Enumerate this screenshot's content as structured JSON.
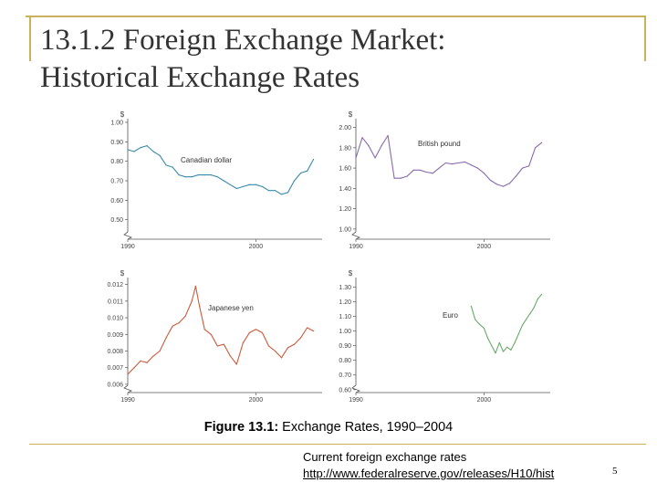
{
  "slide": {
    "title_line1": "13.1.2 Foreign Exchange Market:",
    "title_line2": "Historical Exchange Rates",
    "caption_label": "Figure 13.1:",
    "caption_text": " Exchange Rates, 1990–2004",
    "note_text": "Current foreign exchange rates",
    "note_link": "http://www.federalreserve.gov/releases/H10/hist",
    "page_number": "5",
    "frame_color": "#c9b25a"
  },
  "chart_data": [
    {
      "type": "line",
      "title": "",
      "series_label": "Canadian dollar",
      "color": "#3a8aa8",
      "ylabel": "$",
      "ylim": [
        0.4,
        1.0
      ],
      "yticks": [
        "1.00",
        "0.90",
        "0.80",
        "0.70",
        "0.60",
        "0.50"
      ],
      "ytick_values": [
        1.0,
        0.9,
        0.8,
        0.7,
        0.6,
        0.5
      ],
      "xlim": [
        1990,
        2004.6
      ],
      "xticks": [
        "1990",
        "2000"
      ],
      "xtick_values": [
        1990,
        2000
      ],
      "x": [
        1990.0,
        1990.5,
        1991.0,
        1991.5,
        1992.0,
        1992.5,
        1993.0,
        1993.5,
        1994.0,
        1994.5,
        1995.0,
        1995.5,
        1996.0,
        1996.5,
        1997.0,
        1997.5,
        1998.0,
        1998.5,
        1999.0,
        1999.5,
        2000.0,
        2000.5,
        2001.0,
        2001.5,
        2002.0,
        2002.5,
        2003.0,
        2003.5,
        2004.0,
        2004.5
      ],
      "values": [
        0.86,
        0.85,
        0.87,
        0.88,
        0.85,
        0.83,
        0.78,
        0.77,
        0.73,
        0.72,
        0.72,
        0.73,
        0.73,
        0.73,
        0.72,
        0.7,
        0.68,
        0.66,
        0.67,
        0.68,
        0.68,
        0.67,
        0.65,
        0.65,
        0.63,
        0.64,
        0.7,
        0.74,
        0.75,
        0.81
      ]
    },
    {
      "type": "line",
      "title": "",
      "series_label": "British pound",
      "color": "#8a6aaa",
      "ylabel": "$",
      "ylim": [
        0.9,
        2.05
      ],
      "yticks": [
        "2.00",
        "1.80",
        "1.60",
        "1.40",
        "1.20",
        "1.00"
      ],
      "ytick_values": [
        2.0,
        1.8,
        1.6,
        1.4,
        1.2,
        1.0
      ],
      "xlim": [
        1990,
        2004.6
      ],
      "xticks": [
        "1990",
        "2000"
      ],
      "xtick_values": [
        1990,
        2000
      ],
      "x": [
        1990.0,
        1990.5,
        1991.0,
        1991.5,
        1992.0,
        1992.5,
        1993.0,
        1993.5,
        1994.0,
        1994.5,
        1995.0,
        1995.5,
        1996.0,
        1996.5,
        1997.0,
        1997.5,
        1998.0,
        1998.5,
        1999.0,
        1999.5,
        2000.0,
        2000.5,
        2001.0,
        2001.5,
        2002.0,
        2002.5,
        2003.0,
        2003.5,
        2004.0,
        2004.5
      ],
      "values": [
        1.7,
        1.9,
        1.82,
        1.7,
        1.82,
        1.92,
        1.5,
        1.5,
        1.52,
        1.58,
        1.58,
        1.56,
        1.55,
        1.6,
        1.65,
        1.64,
        1.65,
        1.66,
        1.63,
        1.6,
        1.55,
        1.48,
        1.44,
        1.42,
        1.45,
        1.52,
        1.6,
        1.62,
        1.8,
        1.85
      ]
    },
    {
      "type": "line",
      "title": "",
      "series_label": "Japanese yen",
      "color": "#cc5a3a",
      "ylabel": "$",
      "ylim": [
        0.0055,
        0.0122
      ],
      "yticks": [
        "0.012",
        "0.011",
        "0.010",
        "0.009",
        "0.008",
        "0.007",
        "0.006"
      ],
      "ytick_values": [
        0.012,
        0.011,
        0.01,
        0.009,
        0.008,
        0.007,
        0.006
      ],
      "xlim": [
        1990,
        2004.6
      ],
      "xticks": [
        "1990",
        "2000"
      ],
      "xtick_values": [
        1990,
        2000
      ],
      "x": [
        1990.0,
        1990.5,
        1991.0,
        1991.5,
        1992.0,
        1992.5,
        1993.0,
        1993.5,
        1994.0,
        1994.5,
        1995.0,
        1995.3,
        1995.6,
        1996.0,
        1996.5,
        1997.0,
        1997.5,
        1998.0,
        1998.5,
        1999.0,
        1999.5,
        2000.0,
        2000.5,
        2001.0,
        2001.5,
        2002.0,
        2002.5,
        2003.0,
        2003.5,
        2004.0,
        2004.5
      ],
      "values": [
        0.0066,
        0.007,
        0.0074,
        0.0073,
        0.0077,
        0.008,
        0.0088,
        0.0095,
        0.0097,
        0.0101,
        0.011,
        0.0119,
        0.0107,
        0.0093,
        0.009,
        0.0083,
        0.0084,
        0.0077,
        0.0072,
        0.0085,
        0.0091,
        0.0093,
        0.0091,
        0.0083,
        0.008,
        0.0076,
        0.0082,
        0.0084,
        0.0088,
        0.0094,
        0.0092
      ]
    },
    {
      "type": "line",
      "title": "",
      "series_label": "Euro",
      "color": "#6aaa6a",
      "ylabel": "$",
      "ylim": [
        0.58,
        1.34
      ],
      "yticks": [
        "1.30",
        "1.20",
        "1.10",
        "1.00",
        "0.90",
        "0.80",
        "0.70",
        "0.60"
      ],
      "ytick_values": [
        1.3,
        1.2,
        1.1,
        1.0,
        0.9,
        0.8,
        0.7,
        0.6
      ],
      "xlim": [
        1990,
        2004.6
      ],
      "xticks": [
        "1990",
        "2000"
      ],
      "xtick_values": [
        1990,
        2000
      ],
      "x": [
        1999.0,
        1999.3,
        1999.6,
        2000.0,
        2000.3,
        2000.6,
        2000.9,
        2001.2,
        2001.5,
        2001.8,
        2002.1,
        2002.4,
        2002.7,
        2003.0,
        2003.3,
        2003.6,
        2003.9,
        2004.2,
        2004.5
      ],
      "values": [
        1.17,
        1.08,
        1.05,
        1.02,
        0.95,
        0.9,
        0.85,
        0.92,
        0.86,
        0.89,
        0.87,
        0.92,
        0.98,
        1.04,
        1.08,
        1.12,
        1.16,
        1.22,
        1.25
      ]
    }
  ]
}
